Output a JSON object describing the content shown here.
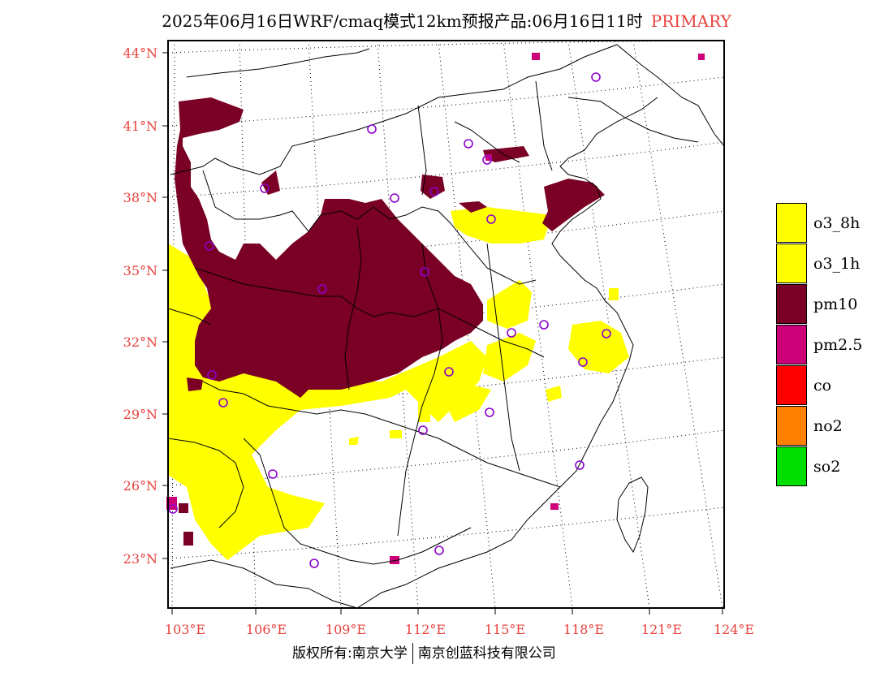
{
  "title": {
    "main": "2025年06月16日WRF/cmaq模式12km预报产品:06月16日11时",
    "tag": "PRIMARY"
  },
  "footer": {
    "left": "版权所有:南京大学",
    "right": "南京创蓝科技有限公司"
  },
  "axes": {
    "lat_labels": [
      "44°N",
      "41°N",
      "38°N",
      "35°N",
      "32°N",
      "29°N",
      "26°N",
      "23°N"
    ],
    "lon_labels": [
      "103°E",
      "106°E",
      "109°E",
      "112°E",
      "115°E",
      "118°E",
      "121°E",
      "124°E"
    ]
  },
  "legend": [
    {
      "label": "o3_8h",
      "color": "#ffff00"
    },
    {
      "label": "o3_1h",
      "color": "#ffff00"
    },
    {
      "label": "pm10",
      "color": "#7a0025"
    },
    {
      "label": "pm2.5",
      "color": "#cc0077"
    },
    {
      "label": "co",
      "color": "#ff0000"
    },
    {
      "label": "no2",
      "color": "#ff7f00"
    },
    {
      "label": "so2",
      "color": "#00dd00"
    }
  ],
  "colors": {
    "axis_label": "#e8413c",
    "pm10": "#7a0025",
    "o3": "#ffff00",
    "pm25": "#cc0077",
    "station": "#8b00cc"
  }
}
